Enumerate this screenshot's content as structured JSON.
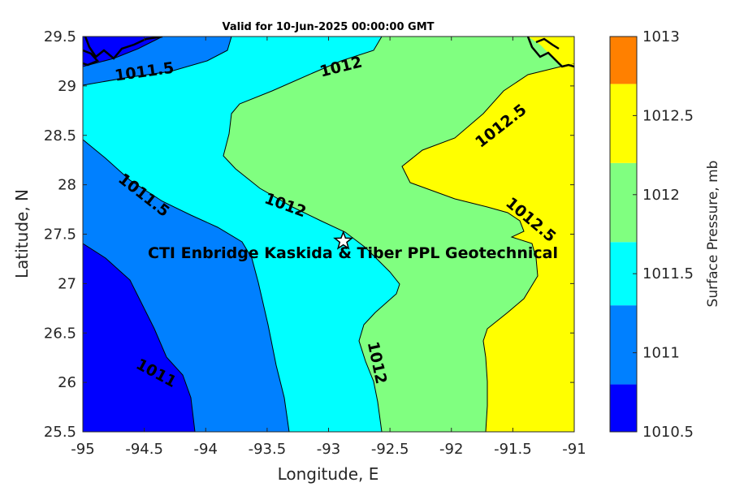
{
  "chart_data": {
    "type": "contour",
    "title": "Valid for 10-Jun-2025 00:00:00 GMT",
    "xlabel": "Longitude, E",
    "ylabel": "Latitude, N",
    "xlim": [
      -95,
      -91
    ],
    "ylim": [
      25.5,
      29.5
    ],
    "xticks": [
      "-95",
      "-94.5",
      "-94",
      "-93.5",
      "-93",
      "-92.5",
      "-92",
      "-91.5",
      "-91"
    ],
    "yticks": [
      "25.5",
      "26",
      "26.5",
      "27",
      "27.5",
      "28",
      "28.5",
      "29",
      "29.5"
    ],
    "colorbar": {
      "label": "Surface Pressure, mb",
      "range": [
        1010.5,
        1013
      ],
      "ticks": [
        "1010.5",
        "1011",
        "1011.5",
        "1012",
        "1012.5",
        "1013"
      ],
      "levels": [
        {
          "from": 1010.5,
          "to": 1010.8,
          "color": "#0000ff"
        },
        {
          "from": 1010.8,
          "to": 1011.3,
          "color": "#0080ff"
        },
        {
          "from": 1011.3,
          "to": 1011.7,
          "color": "#00ffff"
        },
        {
          "from": 1011.7,
          "to": 1012.2,
          "color": "#80ff80"
        },
        {
          "from": 1012.2,
          "to": 1012.7,
          "color": "#ffff00"
        },
        {
          "from": 1012.7,
          "to": 1013,
          "color": "#ff8000"
        }
      ]
    },
    "contour_labels": [
      {
        "text": "1011.5",
        "lon": -94.5,
        "lat": 29.15
      },
      {
        "text": "1012",
        "lon": -92.9,
        "lat": 29.2
      },
      {
        "text": "1012.5",
        "lon": -91.6,
        "lat": 28.6
      },
      {
        "text": "1011.5",
        "lon": -94.5,
        "lat": 27.9
      },
      {
        "text": "1012",
        "lon": -93.35,
        "lat": 27.8
      },
      {
        "text": "1012.5",
        "lon": -91.35,
        "lat": 27.65
      },
      {
        "text": "1012",
        "lon": -92.6,
        "lat": 26.2
      },
      {
        "text": "1011",
        "lon": -94.4,
        "lat": 26.1
      }
    ],
    "site": {
      "name": "CTI Enbridge  Kaskida & Tiber PPL Geotechnical",
      "lon": -92.88,
      "lat": 27.43,
      "marker": "star"
    }
  }
}
